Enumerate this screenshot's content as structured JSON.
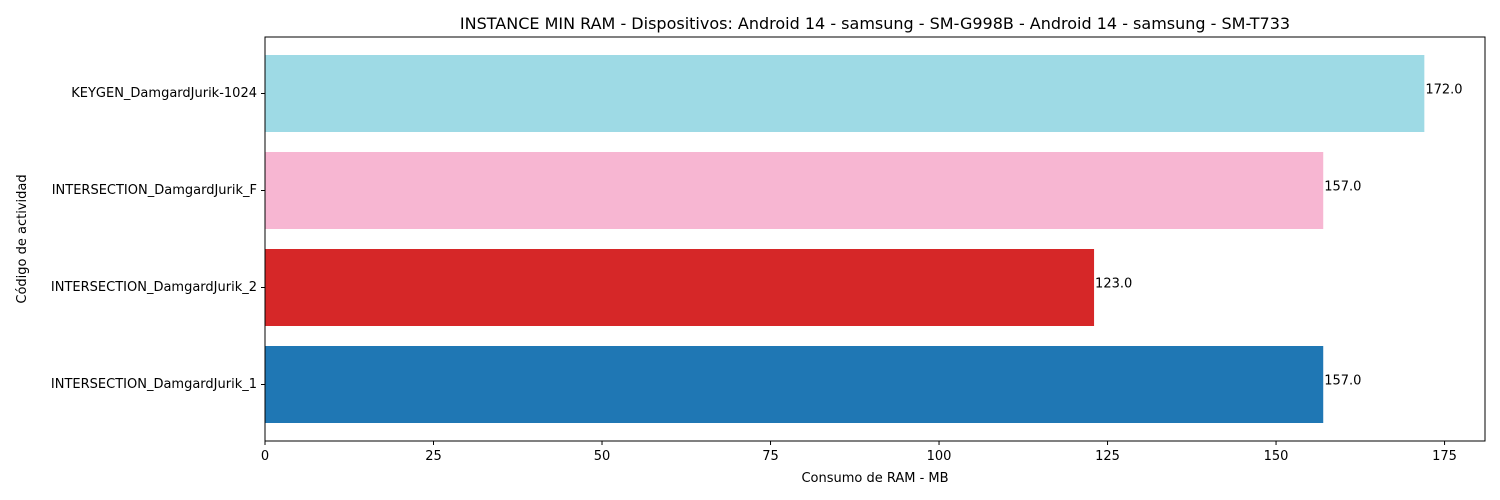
{
  "chart_data": {
    "type": "bar",
    "orientation": "horizontal",
    "title": "INSTANCE MIN RAM - Dispositivos: Android 14 - samsung - SM-G998B - Android 14 - samsung - SM-T733",
    "xlabel": "Consumo de RAM - MB",
    "ylabel": "Código de actividad",
    "xlim": [
      0,
      181
    ],
    "x_ticks": [
      0,
      25,
      50,
      75,
      100,
      125,
      150,
      175
    ],
    "grid": false,
    "legend": "none",
    "categories": [
      "INTERSECTION_DamgardJurik_1",
      "INTERSECTION_DamgardJurik_2",
      "INTERSECTION_DamgardJurik_F",
      "KEYGEN_DamgardJurik-1024"
    ],
    "values": [
      157.0,
      123.0,
      157.0,
      172.0
    ],
    "value_labels": [
      "157.0",
      "123.0",
      "157.0",
      "172.0"
    ],
    "colors": [
      "#1f77b4",
      "#d62728",
      "#f7b6d2",
      "#9edae5"
    ]
  }
}
